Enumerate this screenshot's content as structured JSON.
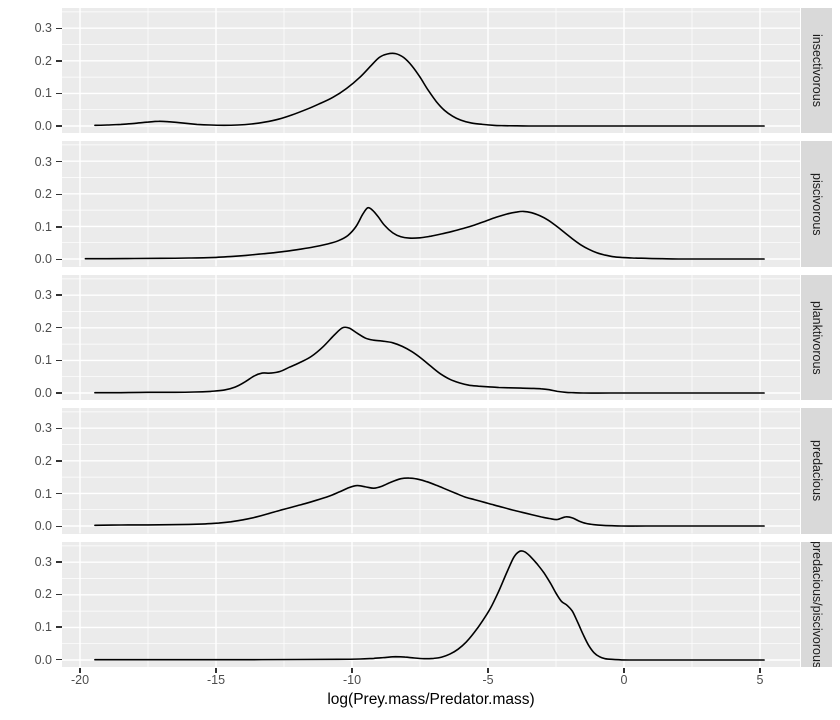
{
  "figure": {
    "colors": {
      "background": "#FFFFFF",
      "panel_bg": "#EBEBEB",
      "grid_major": "#FFFFFF",
      "grid_minor": "#F5F5F5",
      "strip_bg": "#D9D9D9",
      "strip_text": "#1A1A1A",
      "axis_text": "#4D4D4D",
      "tick_mark": "#333333",
      "curve": "#000000"
    }
  },
  "chart_data": {
    "type": "line",
    "subtype": "faceted_density",
    "title": "",
    "xlabel": "log(Prey.mass/Predator.mass)",
    "ylabel": "",
    "xlim": [
      -20.66,
      6.47
    ],
    "ylim": [
      -0.0227,
      0.362
    ],
    "x_major_ticks": [
      -20,
      -15,
      -10,
      -5,
      0,
      5
    ],
    "x_major_tick_labels": [
      "-20",
      "-15",
      "-10",
      "-5",
      "0",
      "5"
    ],
    "x_minor_ticks": [
      -17.5,
      -12.5,
      -7.5,
      -2.5,
      2.5
    ],
    "y_major_ticks": [
      0.0,
      0.1,
      0.2,
      0.3
    ],
    "y_major_tick_labels": [
      "0.0",
      "0.1",
      "0.2",
      "0.3"
    ],
    "y_minor_ticks": [
      0.05,
      0.15,
      0.25,
      0.35
    ],
    "grid": true,
    "legend_position": "none",
    "facet_side": "right",
    "facets": [
      {
        "label": "insectivorous",
        "points": [
          [
            -19.45,
            0.002
          ],
          [
            -19,
            0.003
          ],
          [
            -18.5,
            0.005
          ],
          [
            -18,
            0.008
          ],
          [
            -17.5,
            0.012
          ],
          [
            -17.1,
            0.0145
          ],
          [
            -16.7,
            0.013
          ],
          [
            -16.2,
            0.009
          ],
          [
            -15.7,
            0.005
          ],
          [
            -15.2,
            0.003
          ],
          [
            -14.7,
            0.002
          ],
          [
            -14.2,
            0.003
          ],
          [
            -13.7,
            0.006
          ],
          [
            -13.2,
            0.012
          ],
          [
            -12.7,
            0.021
          ],
          [
            -12.2,
            0.034
          ],
          [
            -11.7,
            0.05
          ],
          [
            -11.2,
            0.068
          ],
          [
            -10.7,
            0.088
          ],
          [
            -10.2,
            0.115
          ],
          [
            -9.7,
            0.15
          ],
          [
            -9.3,
            0.185
          ],
          [
            -9.0,
            0.21
          ],
          [
            -8.7,
            0.221
          ],
          [
            -8.4,
            0.222
          ],
          [
            -8.1,
            0.21
          ],
          [
            -7.8,
            0.185
          ],
          [
            -7.5,
            0.15
          ],
          [
            -7.2,
            0.11
          ],
          [
            -6.9,
            0.075
          ],
          [
            -6.6,
            0.048
          ],
          [
            -6.3,
            0.03
          ],
          [
            -6.0,
            0.018
          ],
          [
            -5.6,
            0.009
          ],
          [
            -5.2,
            0.005
          ],
          [
            -4.8,
            0.002
          ],
          [
            -4.4,
            0.001
          ],
          [
            -4.0,
            0.0005
          ],
          [
            -3.5,
            0
          ],
          [
            -2.5,
            0
          ],
          [
            -1,
            0
          ],
          [
            1,
            0
          ],
          [
            3,
            0
          ],
          [
            5.15,
            0
          ]
        ]
      },
      {
        "label": "piscivorous",
        "points": [
          [
            -19.8,
            0.001
          ],
          [
            -19,
            0.001
          ],
          [
            -18,
            0.0015
          ],
          [
            -17,
            0.002
          ],
          [
            -16,
            0.003
          ],
          [
            -15,
            0.005
          ],
          [
            -14.4,
            0.008
          ],
          [
            -13.9,
            0.011
          ],
          [
            -13.4,
            0.015
          ],
          [
            -12.9,
            0.019
          ],
          [
            -12.4,
            0.024
          ],
          [
            -11.9,
            0.03
          ],
          [
            -11.4,
            0.037
          ],
          [
            -10.9,
            0.046
          ],
          [
            -10.5,
            0.056
          ],
          [
            -10.15,
            0.072
          ],
          [
            -9.85,
            0.1
          ],
          [
            -9.6,
            0.138
          ],
          [
            -9.42,
            0.157
          ],
          [
            -9.25,
            0.15
          ],
          [
            -9.05,
            0.131
          ],
          [
            -8.8,
            0.103
          ],
          [
            -8.5,
            0.08
          ],
          [
            -8.2,
            0.068
          ],
          [
            -7.9,
            0.064
          ],
          [
            -7.5,
            0.065
          ],
          [
            -7.1,
            0.07
          ],
          [
            -6.7,
            0.077
          ],
          [
            -6.3,
            0.085
          ],
          [
            -5.9,
            0.094
          ],
          [
            -5.5,
            0.104
          ],
          [
            -5.1,
            0.116
          ],
          [
            -4.7,
            0.128
          ],
          [
            -4.3,
            0.138
          ],
          [
            -3.95,
            0.144
          ],
          [
            -3.7,
            0.146
          ],
          [
            -3.4,
            0.142
          ],
          [
            -3.1,
            0.133
          ],
          [
            -2.8,
            0.12
          ],
          [
            -2.5,
            0.102
          ],
          [
            -2.2,
            0.082
          ],
          [
            -1.9,
            0.062
          ],
          [
            -1.6,
            0.044
          ],
          [
            -1.3,
            0.03
          ],
          [
            -1.0,
            0.019
          ],
          [
            -0.7,
            0.012
          ],
          [
            -0.4,
            0.007
          ],
          [
            -0.1,
            0.005
          ],
          [
            0.3,
            0.003
          ],
          [
            0.8,
            0.002
          ],
          [
            1.4,
            0.001
          ],
          [
            2,
            0
          ],
          [
            3.5,
            0
          ],
          [
            5.15,
            0
          ]
        ]
      },
      {
        "label": "planktivorous",
        "points": [
          [
            -19.45,
            0.001
          ],
          [
            -18.5,
            0.001
          ],
          [
            -17.5,
            0.002
          ],
          [
            -16.5,
            0.002
          ],
          [
            -15.8,
            0.003
          ],
          [
            -15.2,
            0.005
          ],
          [
            -14.7,
            0.009
          ],
          [
            -14.3,
            0.018
          ],
          [
            -13.95,
            0.033
          ],
          [
            -13.6,
            0.052
          ],
          [
            -13.3,
            0.061
          ],
          [
            -13.0,
            0.061
          ],
          [
            -12.65,
            0.066
          ],
          [
            -12.3,
            0.079
          ],
          [
            -11.95,
            0.092
          ],
          [
            -11.5,
            0.112
          ],
          [
            -11.05,
            0.143
          ],
          [
            -10.65,
            0.178
          ],
          [
            -10.35,
            0.2
          ],
          [
            -10.1,
            0.199
          ],
          [
            -9.8,
            0.183
          ],
          [
            -9.5,
            0.168
          ],
          [
            -9.2,
            0.162
          ],
          [
            -8.85,
            0.159
          ],
          [
            -8.5,
            0.154
          ],
          [
            -8.15,
            0.143
          ],
          [
            -7.8,
            0.127
          ],
          [
            -7.45,
            0.106
          ],
          [
            -7.1,
            0.082
          ],
          [
            -6.75,
            0.059
          ],
          [
            -6.4,
            0.042
          ],
          [
            -6.05,
            0.031
          ],
          [
            -5.7,
            0.024
          ],
          [
            -5.35,
            0.021
          ],
          [
            -5.0,
            0.019
          ],
          [
            -4.6,
            0.017
          ],
          [
            -4.2,
            0.016
          ],
          [
            -3.8,
            0.015
          ],
          [
            -3.4,
            0.014
          ],
          [
            -3.05,
            0.013
          ],
          [
            -2.75,
            0.01
          ],
          [
            -2.45,
            0.005
          ],
          [
            -2.15,
            0.002
          ],
          [
            -1.85,
            0.001
          ],
          [
            -1.5,
            0
          ],
          [
            -0.5,
            0
          ],
          [
            1,
            0
          ],
          [
            3,
            0
          ],
          [
            5.15,
            0
          ]
        ]
      },
      {
        "label": "predacious",
        "points": [
          [
            -19.45,
            0.002
          ],
          [
            -18.5,
            0.003
          ],
          [
            -17.5,
            0.0035
          ],
          [
            -16.7,
            0.004
          ],
          [
            -16,
            0.005
          ],
          [
            -15.4,
            0.0065
          ],
          [
            -14.9,
            0.009
          ],
          [
            -14.45,
            0.013
          ],
          [
            -14.0,
            0.019
          ],
          [
            -13.55,
            0.027
          ],
          [
            -13.1,
            0.037
          ],
          [
            -12.65,
            0.048
          ],
          [
            -12.2,
            0.058
          ],
          [
            -11.75,
            0.068
          ],
          [
            -11.3,
            0.079
          ],
          [
            -10.85,
            0.091
          ],
          [
            -10.45,
            0.105
          ],
          [
            -10.1,
            0.118
          ],
          [
            -9.8,
            0.124
          ],
          [
            -9.5,
            0.12
          ],
          [
            -9.2,
            0.116
          ],
          [
            -8.9,
            0.122
          ],
          [
            -8.55,
            0.135
          ],
          [
            -8.2,
            0.145
          ],
          [
            -7.9,
            0.147
          ],
          [
            -7.6,
            0.144
          ],
          [
            -7.25,
            0.136
          ],
          [
            -6.9,
            0.125
          ],
          [
            -6.55,
            0.113
          ],
          [
            -6.2,
            0.101
          ],
          [
            -5.85,
            0.089
          ],
          [
            -5.5,
            0.081
          ],
          [
            -5.15,
            0.073
          ],
          [
            -4.8,
            0.065
          ],
          [
            -4.45,
            0.057
          ],
          [
            -4.1,
            0.049
          ],
          [
            -3.75,
            0.042
          ],
          [
            -3.4,
            0.035
          ],
          [
            -3.05,
            0.028
          ],
          [
            -2.75,
            0.023
          ],
          [
            -2.45,
            0.02
          ],
          [
            -2.15,
            0.028
          ],
          [
            -1.9,
            0.025
          ],
          [
            -1.65,
            0.015
          ],
          [
            -1.4,
            0.008
          ],
          [
            -1.1,
            0.004
          ],
          [
            -0.8,
            0.002
          ],
          [
            -0.45,
            0.001
          ],
          [
            -0.1,
            0
          ],
          [
            0.8,
            0
          ],
          [
            2.5,
            0
          ],
          [
            5.15,
            0
          ]
        ]
      },
      {
        "label": "predacious/piscivorous",
        "points": [
          [
            -19.45,
            0.001
          ],
          [
            -18,
            0.001
          ],
          [
            -16,
            0.001
          ],
          [
            -14,
            0.001
          ],
          [
            -12,
            0.0015
          ],
          [
            -10.5,
            0.002
          ],
          [
            -9.7,
            0.003
          ],
          [
            -9.2,
            0.005
          ],
          [
            -8.75,
            0.008
          ],
          [
            -8.4,
            0.01
          ],
          [
            -8.05,
            0.009
          ],
          [
            -7.7,
            0.006
          ],
          [
            -7.35,
            0.004
          ],
          [
            -7.0,
            0.005
          ],
          [
            -6.7,
            0.009
          ],
          [
            -6.4,
            0.018
          ],
          [
            -6.1,
            0.033
          ],
          [
            -5.8,
            0.055
          ],
          [
            -5.5,
            0.085
          ],
          [
            -5.2,
            0.12
          ],
          [
            -4.9,
            0.16
          ],
          [
            -4.6,
            0.212
          ],
          [
            -4.3,
            0.27
          ],
          [
            -4.05,
            0.315
          ],
          [
            -3.85,
            0.333
          ],
          [
            -3.65,
            0.332
          ],
          [
            -3.45,
            0.318
          ],
          [
            -3.2,
            0.295
          ],
          [
            -2.95,
            0.268
          ],
          [
            -2.7,
            0.235
          ],
          [
            -2.5,
            0.205
          ],
          [
            -2.3,
            0.18
          ],
          [
            -2.1,
            0.168
          ],
          [
            -1.9,
            0.15
          ],
          [
            -1.7,
            0.115
          ],
          [
            -1.5,
            0.078
          ],
          [
            -1.3,
            0.045
          ],
          [
            -1.1,
            0.022
          ],
          [
            -0.9,
            0.01
          ],
          [
            -0.7,
            0.004
          ],
          [
            -0.45,
            0.002
          ],
          [
            -0.2,
            0.001
          ],
          [
            0.2,
            0
          ],
          [
            2,
            0
          ],
          [
            5.15,
            0
          ]
        ]
      }
    ]
  }
}
